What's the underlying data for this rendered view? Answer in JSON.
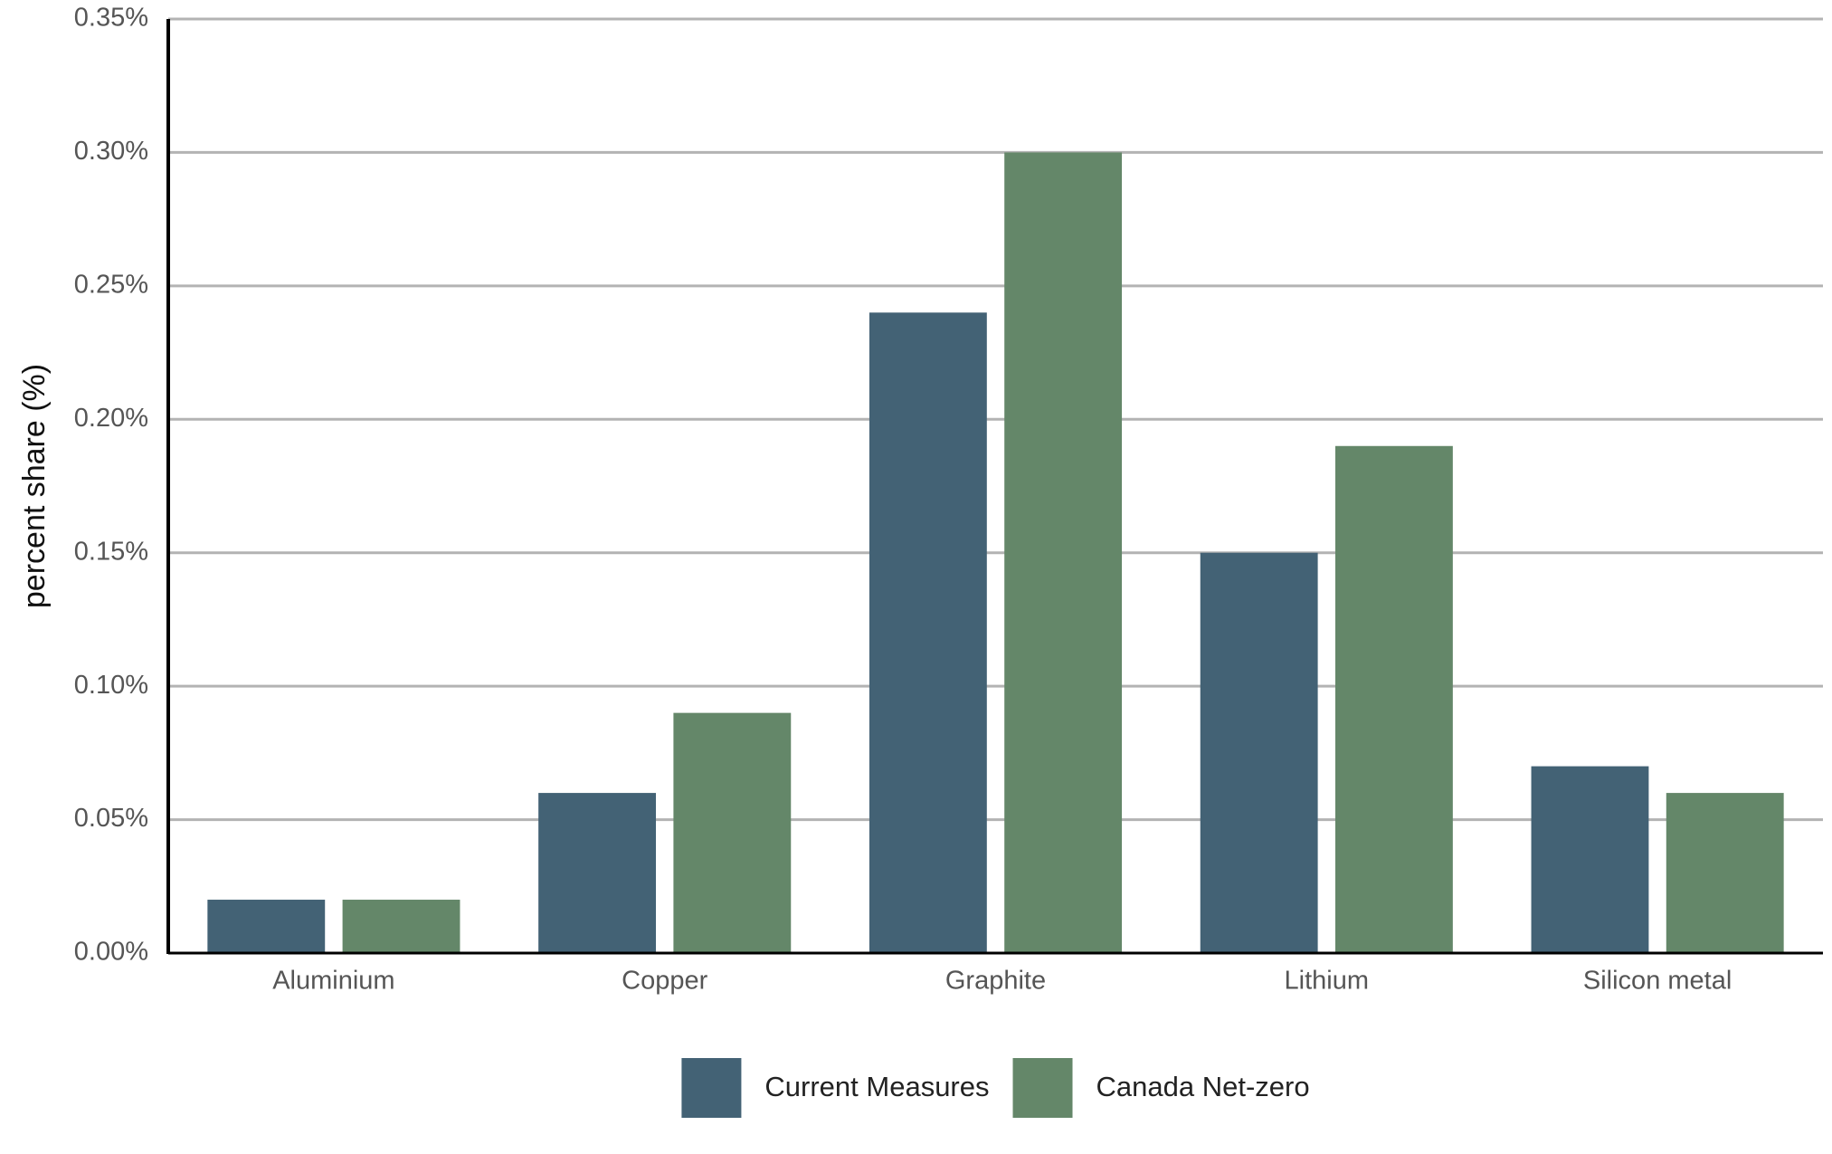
{
  "chart_data": {
    "type": "bar",
    "y_label": "percent share (%)",
    "categories": [
      "Aluminium",
      "Copper",
      "Graphite",
      "Lithium",
      "Silicon metal"
    ],
    "series": [
      {
        "name": "Current Measures",
        "color": "#436275",
        "values": [
          0.02,
          0.06,
          0.24,
          0.15,
          0.07
        ]
      },
      {
        "name": "Canada Net-zero",
        "color": "#648769",
        "values": [
          0.02,
          0.09,
          0.3,
          0.19,
          0.06
        ]
      }
    ],
    "ylim": [
      0,
      0.35
    ],
    "yticks": [
      {
        "value": 0,
        "label": "0.00%"
      },
      {
        "value": 0.05,
        "label": "0.05%"
      },
      {
        "value": 0.1,
        "label": "0.10%"
      },
      {
        "value": 0.15,
        "label": "0.15%"
      },
      {
        "value": 0.2,
        "label": "0.20%"
      },
      {
        "value": 0.25,
        "label": "0.25%"
      },
      {
        "value": 0.3,
        "label": "0.30%"
      },
      {
        "value": 0.35,
        "label": "0.35%"
      }
    ],
    "grid": true,
    "legend": "bottom"
  }
}
